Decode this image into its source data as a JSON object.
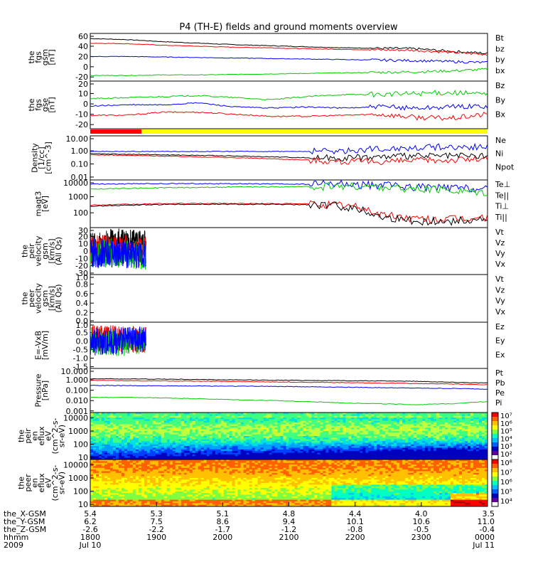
{
  "title": "P4 (TH-E) fields and ground moments overview",
  "colors": {
    "black": "#000000",
    "red": "#ff0000",
    "green": "#00cc00",
    "blue": "#0000ff",
    "yellow": "#ffff00"
  },
  "chart_data": [
    {
      "type": "line",
      "id": "fgs-gsm",
      "ylabel": [
        "the",
        "fgs",
        "gsm",
        "[nT]"
      ],
      "yticks": [
        60,
        40,
        20,
        0,
        -20
      ],
      "ylim": [
        -28,
        65
      ],
      "series": [
        {
          "name": "Bt",
          "color": "black",
          "values": [
            55,
            53,
            49,
            46,
            43,
            41,
            39,
            37,
            36,
            35,
            30,
            26
          ]
        },
        {
          "name": "bz",
          "color": "red",
          "values": [
            46,
            45,
            42,
            40,
            38,
            37,
            35,
            34,
            33,
            32,
            28,
            24
          ]
        },
        {
          "name": "by",
          "color": "green",
          "values": [
            -17,
            -17,
            -16,
            -16,
            -15,
            -14,
            -13,
            -12,
            -11,
            -10,
            -8,
            -5
          ]
        },
        {
          "name": "bx",
          "color": "blue",
          "values": [
            20,
            20,
            19,
            18,
            17,
            16,
            15,
            14,
            13,
            12,
            10,
            8
          ]
        }
      ]
    },
    {
      "type": "line",
      "id": "fgs-gse",
      "ylabel": [
        "the",
        "fgs",
        "gse",
        "[nT]"
      ],
      "yticks": [
        20,
        10,
        0,
        -10,
        -20
      ],
      "ylim": [
        -24,
        22
      ],
      "series": [
        {
          "name": "Bz",
          "color": "red",
          "values": [
            -11,
            -11,
            -8,
            -8,
            -10,
            -12,
            -12,
            -11,
            -10,
            -13,
            -14,
            -10
          ]
        },
        {
          "name": "By",
          "color": "green",
          "values": [
            5,
            6,
            7,
            8,
            6,
            4,
            7,
            9,
            9,
            10,
            11,
            9
          ]
        },
        {
          "name": "Bx",
          "color": "blue",
          "values": [
            -2,
            -1,
            -1,
            1,
            -3,
            -4,
            -3,
            -4,
            -3,
            -4,
            -3,
            -2
          ]
        }
      ]
    },
    {
      "type": "line",
      "id": "density",
      "log": true,
      "ylabel": [
        "Density",
        "[1/cc]",
        "[cm^-3]"
      ],
      "yticks": [
        "10.00",
        "1.00",
        "0.10",
        "0.01"
      ],
      "ylim": [
        0.006,
        14
      ],
      "series": [
        {
          "name": "Ne",
          "color": "red",
          "values": [
            0.5,
            0.45,
            0.4,
            0.35,
            0.3,
            0.25,
            0.2,
            0.15,
            0.15,
            0.18,
            0.2,
            0.25
          ]
        },
        {
          "name": "Ni",
          "color": "black",
          "values": [
            0.6,
            0.55,
            0.5,
            0.45,
            0.4,
            0.35,
            0.3,
            0.3,
            0.35,
            0.4,
            0.4,
            0.4
          ]
        },
        {
          "name": "Npot",
          "color": "blue",
          "values": [
            0.9,
            0.9,
            0.9,
            0.9,
            0.9,
            0.9,
            0.9,
            1.0,
            1.4,
            1.8,
            2.0,
            2.0
          ]
        }
      ]
    },
    {
      "type": "line",
      "id": "temperature",
      "log": true,
      "ylabel": [
        "magt3",
        "[eV]"
      ],
      "yticks": [
        "10000",
        "1000",
        "100"
      ],
      "ylim": [
        12,
        11000
      ],
      "series": [
        {
          "name": "Te⊥",
          "color": "red",
          "values": [
            300,
            330,
            370,
            380,
            380,
            370,
            360,
            300,
            80,
            40,
            40,
            50
          ]
        },
        {
          "name": "Te||",
          "color": "black",
          "values": [
            260,
            290,
            330,
            340,
            340,
            330,
            320,
            250,
            60,
            30,
            30,
            40
          ]
        },
        {
          "name": "Ti⊥",
          "color": "blue",
          "values": [
            6000,
            6300,
            6500,
            6500,
            6400,
            6200,
            6000,
            5800,
            5000,
            4000,
            3500,
            3000
          ]
        },
        {
          "name": "Ti||",
          "color": "green",
          "values": [
            3000,
            3300,
            3600,
            3800,
            4000,
            4100,
            4200,
            4300,
            4000,
            3000,
            2500,
            2000
          ]
        }
      ]
    },
    {
      "type": "line",
      "id": "peir-velocity",
      "ylabel": [
        "the",
        "peir",
        "velocity",
        "gsm",
        "[km/s]",
        "(All Qs)"
      ],
      "yticks": [
        30,
        20,
        10,
        0,
        -10,
        -20,
        -30
      ],
      "ylim": [
        -32,
        32
      ],
      "xrange": [
        0,
        0.14
      ],
      "series": [
        {
          "name": "Vt",
          "color": "black",
          "values": [
            5,
            12,
            9
          ]
        },
        {
          "name": "Vz",
          "color": "red",
          "values": [
            2,
            3,
            -1
          ]
        },
        {
          "name": "Vy",
          "color": "green",
          "values": [
            -4,
            -3,
            -6
          ]
        },
        {
          "name": "Vx",
          "color": "blue",
          "values": [
            -2,
            -5,
            -3
          ]
        }
      ]
    },
    {
      "type": "line",
      "id": "peer-velocity",
      "ylabel": [
        "the",
        "peer",
        "velocity",
        "gsm",
        "[km/s]",
        "(All Qs)"
      ],
      "yticks": [
        "1.0",
        "0.8",
        "0.6",
        "0.4",
        "0.2",
        "0.0"
      ],
      "ylim": [
        0,
        1.0
      ],
      "series": [
        {
          "name": "Vt",
          "color": "black",
          "values": []
        },
        {
          "name": "Vz",
          "color": "red",
          "values": []
        },
        {
          "name": "Vy",
          "color": "green",
          "values": []
        },
        {
          "name": "Vx",
          "color": "blue",
          "values": []
        }
      ]
    },
    {
      "type": "line",
      "id": "efield",
      "ylabel": [
        "E=-VxB",
        "[mV/m]"
      ],
      "yticks": [
        "1.0",
        "0.5",
        "0.0",
        "-0.5",
        "-1.0",
        "-1.5"
      ],
      "ylim": [
        -1.6,
        1.1
      ],
      "xrange": [
        0,
        0.14
      ],
      "series": [
        {
          "name": "Ez",
          "color": "red",
          "values": [
            0.1,
            0.15,
            0.05
          ]
        },
        {
          "name": "Ey",
          "color": "green",
          "values": [
            0.0,
            -0.1,
            0.05
          ]
        },
        {
          "name": "Ex",
          "color": "blue",
          "values": [
            -0.05,
            0.0,
            0.1
          ]
        }
      ]
    },
    {
      "type": "line",
      "id": "pressure",
      "log": true,
      "ylabel": [
        "Pressure",
        "[nPa]"
      ],
      "yticks": [
        "10.000",
        "1.000",
        "0.100",
        "0.010",
        "0.001"
      ],
      "ylim": [
        0.0007,
        13
      ],
      "series": [
        {
          "name": "Pt",
          "color": "black",
          "values": [
            1.3,
            1.25,
            1.2,
            1.1,
            1.0,
            0.95,
            0.9,
            0.85,
            0.8,
            0.75,
            0.6,
            0.5
          ]
        },
        {
          "name": "Pb",
          "color": "red",
          "values": [
            0.9,
            0.85,
            0.8,
            0.75,
            0.7,
            0.65,
            0.6,
            0.55,
            0.5,
            0.45,
            0.4,
            0.35
          ]
        },
        {
          "name": "Pe",
          "color": "green",
          "values": [
            0.02,
            0.02,
            0.018,
            0.015,
            0.012,
            0.01,
            0.008,
            0.006,
            0.005,
            0.004,
            0.005,
            0.008
          ]
        },
        {
          "name": "Pi",
          "color": "blue",
          "values": [
            0.3,
            0.28,
            0.27,
            0.26,
            0.25,
            0.24,
            0.22,
            0.2,
            0.18,
            0.16,
            0.15,
            0.13
          ]
        }
      ]
    },
    {
      "type": "heatmap",
      "id": "peir-eflux",
      "log": true,
      "ylabel": [
        "the",
        "peir",
        "en",
        "eflux",
        "eV",
        "(cm^2-s-",
        "sr-eV)"
      ],
      "yticks": [
        "10000",
        "1000",
        "100",
        "10"
      ],
      "ylim": [
        7,
        25000
      ],
      "colorbar": {
        "ticks": [
          "10⁷",
          "10⁶",
          "10⁵",
          "10⁴",
          "10³",
          "10²"
        ]
      }
    },
    {
      "type": "heatmap",
      "id": "peer-eflux",
      "log": true,
      "ylabel": [
        "the",
        "peer",
        "en",
        "eflux",
        "eV",
        "(cm^2-s-",
        "sr-eV)"
      ],
      "yticks": [
        "10000",
        "1000",
        "100",
        "10"
      ],
      "ylim": [
        7,
        25000
      ],
      "colorbar": {
        "ticks": [
          "10⁸",
          "10⁷",
          "10⁶",
          "10⁵",
          "10⁴"
        ]
      }
    }
  ],
  "xaxis": {
    "rows": [
      {
        "label": "the_X-GSM",
        "values": [
          "5.4",
          "5.3",
          "5.1",
          "4.8",
          "4.4",
          "4.0",
          "3.5"
        ]
      },
      {
        "label": "the_Y-GSM",
        "values": [
          "6.2",
          "7.5",
          "8.6",
          "9.4",
          "10.1",
          "10.6",
          "11.0"
        ]
      },
      {
        "label": "the_Z-GSM",
        "values": [
          "-2.6",
          "-2.2",
          "-1.7",
          "-1.2",
          "-0.8",
          "-0.5",
          "-0.4"
        ]
      },
      {
        "label": "hhmm",
        "values": [
          "1800",
          "1900",
          "2000",
          "2100",
          "2200",
          "2300",
          "0000"
        ]
      },
      {
        "label": "2009",
        "values": [
          "Jul 10",
          "",
          "",
          "",
          "",
          "",
          "Jul 11"
        ]
      }
    ]
  }
}
